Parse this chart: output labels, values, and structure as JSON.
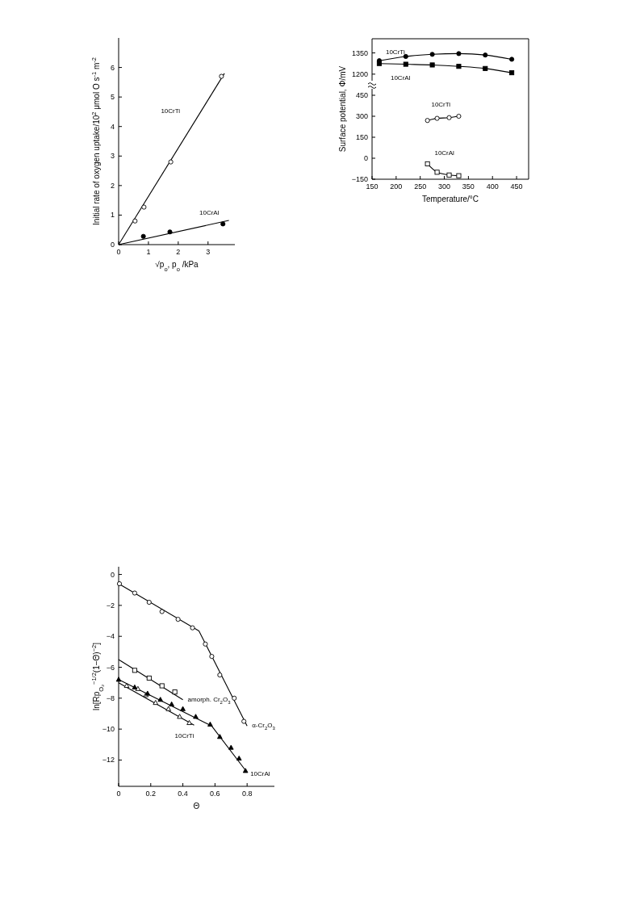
{
  "chart_data": [
    {
      "type": "scatter",
      "xlabel": "√p$_{o}$, p$_{o}$ /kPa",
      "ylabel": "Initial rate of oxygen uptake/10$^{2}$ μmol O s$^{-1}$ m$^{-2}$",
      "xlim": [
        0,
        3.9
      ],
      "xticks": [
        0,
        1,
        2,
        3
      ],
      "ylim": [
        0,
        7
      ],
      "yticks": [
        0,
        1,
        2,
        3,
        4,
        5,
        6
      ],
      "series": [
        {
          "name": "10CrTi",
          "type": "line",
          "marker": "none",
          "color": "#000000",
          "x": [
            0,
            3.55
          ],
          "values": [
            0,
            5.8
          ]
        },
        {
          "name": "10CrAl",
          "type": "line",
          "marker": "none",
          "color": "#000000",
          "x": [
            0,
            3.7
          ],
          "values": [
            0,
            0.82
          ]
        },
        {
          "type": "scatter",
          "marker": "circle",
          "color": "#000000",
          "x": [
            0.55,
            0.85,
            1.75,
            3.45
          ],
          "values": [
            0.8,
            1.27,
            2.8,
            5.7
          ]
        },
        {
          "type": "scatter",
          "marker": "circle",
          "color": "#000000",
          "x": [
            0.83,
            1.72,
            3.5
          ],
          "values": [
            0.28,
            0.43,
            0.7
          ]
        }
      ]
    },
    {
      "type": "line",
      "xlim": [
        150,
        475
      ],
      "xticks": [
        150,
        200,
        250,
        300,
        350,
        400,
        450
      ],
      "ylim": [
        1125,
        1450
      ],
      "yticks": [
        1200,
        1350
      ],
      "tick_labels": "y",
      "series": [
        {
          "name": "10CrTi",
          "marker": "circle",
          "color": "#000000",
          "x": [
            165,
            220,
            275,
            330,
            385,
            440
          ],
          "values": [
            1295,
            1325,
            1340,
            1345,
            1335,
            1305
          ]
        },
        {
          "name": "10CrAl",
          "marker": "square",
          "color": "#000000",
          "x": [
            165,
            220,
            275,
            330,
            385,
            440
          ],
          "values": [
            1275,
            1270,
            1265,
            1255,
            1240,
            1210
          ]
        }
      ]
    },
    {
      "type": "line",
      "xlabel": "Temperature/°C",
      "ylabel": "Surface potential, Φ/mV",
      "xlim": [
        150,
        475
      ],
      "xticks": [
        150,
        200,
        250,
        300,
        350,
        400,
        450
      ],
      "ylim": [
        -150,
        525
      ],
      "yticks": [
        -150,
        0,
        150,
        300,
        450
      ],
      "series": [
        {
          "name": "10CrTi",
          "marker": "circle",
          "color": "#000000",
          "x": [
            265,
            285,
            310,
            330
          ],
          "values": [
            270,
            285,
            290,
            300
          ]
        },
        {
          "name": "10CrAl",
          "marker": "square",
          "color": "#000000",
          "x": [
            265,
            285,
            310,
            330
          ],
          "values": [
            -40,
            -100,
            -120,
            -125
          ]
        }
      ]
    },
    {
      "type": "scatter",
      "xlabel": "Θ",
      "ylabel": "ln[Rp$_{O₂}$$^{−1/2}$(1−Θ)$^{−2}$]",
      "xlim": [
        0,
        0.97
      ],
      "xticks": [
        0,
        0.2,
        0.4,
        0.6,
        0.8
      ],
      "ylim": [
        -13.7,
        0.5
      ],
      "yticks": [
        0,
        -2,
        -4,
        -6,
        -8,
        -10,
        -12
      ],
      "series": [
        {
          "name": "α-Cr$_{2}$O$_{3}$",
          "type": "line",
          "marker": "none",
          "color": "#000000",
          "x": [
            0,
            0.5,
            0.8
          ],
          "values": [
            -0.6,
            -3.65,
            -9.8
          ]
        },
        {
          "name": "amorph. Cr$_{2}$O$_{3}$",
          "type": "line",
          "marker": "none",
          "color": "#000000",
          "x": [
            0,
            0.4
          ],
          "values": [
            -5.5,
            -8.1
          ]
        },
        {
          "name": "10CrTi",
          "type": "line",
          "marker": "none",
          "color": "#000000",
          "x": [
            0,
            0.47
          ],
          "values": [
            -7.0,
            -9.75
          ]
        },
        {
          "name": "10CrAl",
          "type": "line",
          "marker": "none",
          "color": "#000000",
          "x": [
            0,
            0.58,
            0.8
          ],
          "values": [
            -6.8,
            -9.8,
            -12.8
          ]
        },
        {
          "type": "scatter",
          "marker": "circle",
          "color": "#000000",
          "x": [
            0.005,
            0.1,
            0.19,
            0.27,
            0.37,
            0.46,
            0.54,
            0.58,
            0.63,
            0.72,
            0.78
          ],
          "values": [
            -0.6,
            -1.2,
            -1.8,
            -2.4,
            -2.9,
            -3.45,
            -4.5,
            -5.3,
            -6.5,
            -8.0,
            -9.5
          ]
        },
        {
          "type": "scatter",
          "marker": "square",
          "color": "#000000",
          "x": [
            0.1,
            0.19,
            0.27,
            0.35
          ],
          "values": [
            -6.2,
            -6.7,
            -7.2,
            -7.6
          ]
        },
        {
          "type": "scatter",
          "marker": "triangle",
          "color": "#000000",
          "x": [
            0.05,
            0.12,
            0.17,
            0.23,
            0.31,
            0.38,
            0.44
          ],
          "values": [
            -7.2,
            -7.4,
            -7.8,
            -8.3,
            -8.7,
            -9.2,
            -9.6
          ]
        },
        {
          "type": "scatter",
          "marker": "triangle",
          "color": "#000000",
          "x": [
            0,
            0.1,
            0.18,
            0.26,
            0.33,
            0.4,
            0.48,
            0.57,
            0.63,
            0.7,
            0.75,
            0.79
          ],
          "values": [
            -6.8,
            -7.3,
            -7.7,
            -8.1,
            -8.4,
            -8.7,
            -9.2,
            -9.7,
            -10.5,
            -11.2,
            -11.9,
            -12.7
          ]
        }
      ]
    }
  ]
}
